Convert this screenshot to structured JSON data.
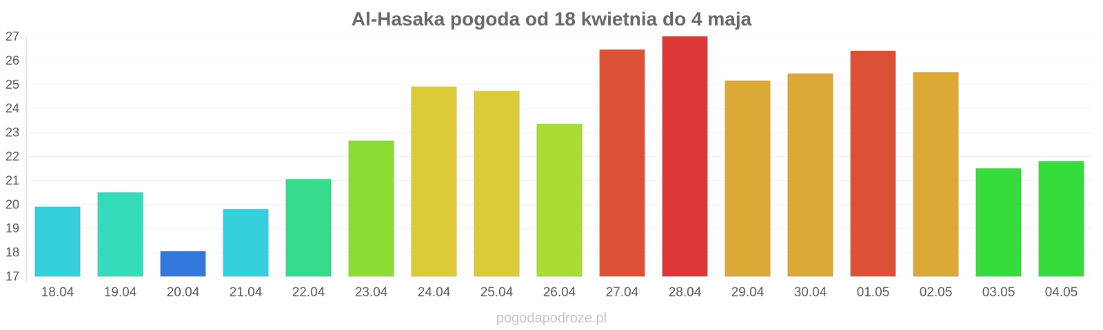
{
  "chart_data": {
    "type": "bar",
    "title": "Al-Hasaka pogoda od 18 kwietnia do 4 maja",
    "xlabel": "",
    "ylabel": "",
    "ylim": [
      17,
      27
    ],
    "yticks": [
      17,
      18,
      19,
      20,
      21,
      22,
      23,
      24,
      25,
      26,
      27
    ],
    "grid": true,
    "legend": "none",
    "categories": [
      "18.04",
      "19.04",
      "20.04",
      "21.04",
      "22.04",
      "23.04",
      "24.04",
      "25.04",
      "26.04",
      "27.04",
      "28.04",
      "29.04",
      "30.04",
      "01.05",
      "02.05",
      "03.05",
      "04.05"
    ],
    "values": [
      19.9,
      20.5,
      18.05,
      19.8,
      21.05,
      22.65,
      24.9,
      24.72,
      23.35,
      26.45,
      27.0,
      25.15,
      25.45,
      26.4,
      25.5,
      21.5,
      21.8
    ],
    "colors": [
      "#36cfdc",
      "#36dbbc",
      "#3377dc",
      "#36cfdc",
      "#36db8c",
      "#8cdc36",
      "#dccb36",
      "#dccb36",
      "#aadc36",
      "#dc5036",
      "#dc3636",
      "#dca836",
      "#dca836",
      "#dc5036",
      "#dca836",
      "#36dc3c",
      "#36dc3c"
    ]
  },
  "watermark": "pogodapodroze.pl"
}
